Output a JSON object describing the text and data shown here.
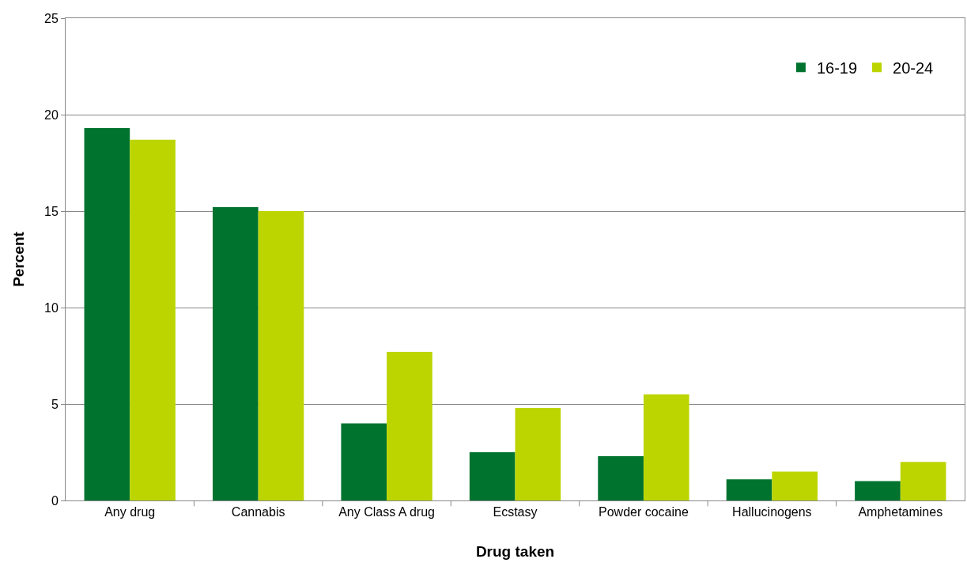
{
  "chart_data": {
    "type": "bar",
    "xlabel": "Drug taken",
    "ylabel": "Percent",
    "categories": [
      "Any drug",
      "Cannabis",
      "Any Class A drug",
      "Ecstasy",
      "Powder cocaine",
      "Hallucinogens",
      "Amphetamines"
    ],
    "series": [
      {
        "name": "16-19",
        "color": "#00732f",
        "values": [
          19.3,
          15.2,
          4.0,
          2.5,
          2.3,
          1.1,
          1.0
        ]
      },
      {
        "name": "20-24",
        "color": "#bcd500",
        "values": [
          18.7,
          15.0,
          7.7,
          4.8,
          5.5,
          1.5,
          2.0
        ]
      }
    ],
    "ylim": [
      0,
      25
    ],
    "yticks": [
      0,
      5,
      10,
      15,
      20,
      25
    ],
    "grid": "y",
    "legend": "top right"
  }
}
